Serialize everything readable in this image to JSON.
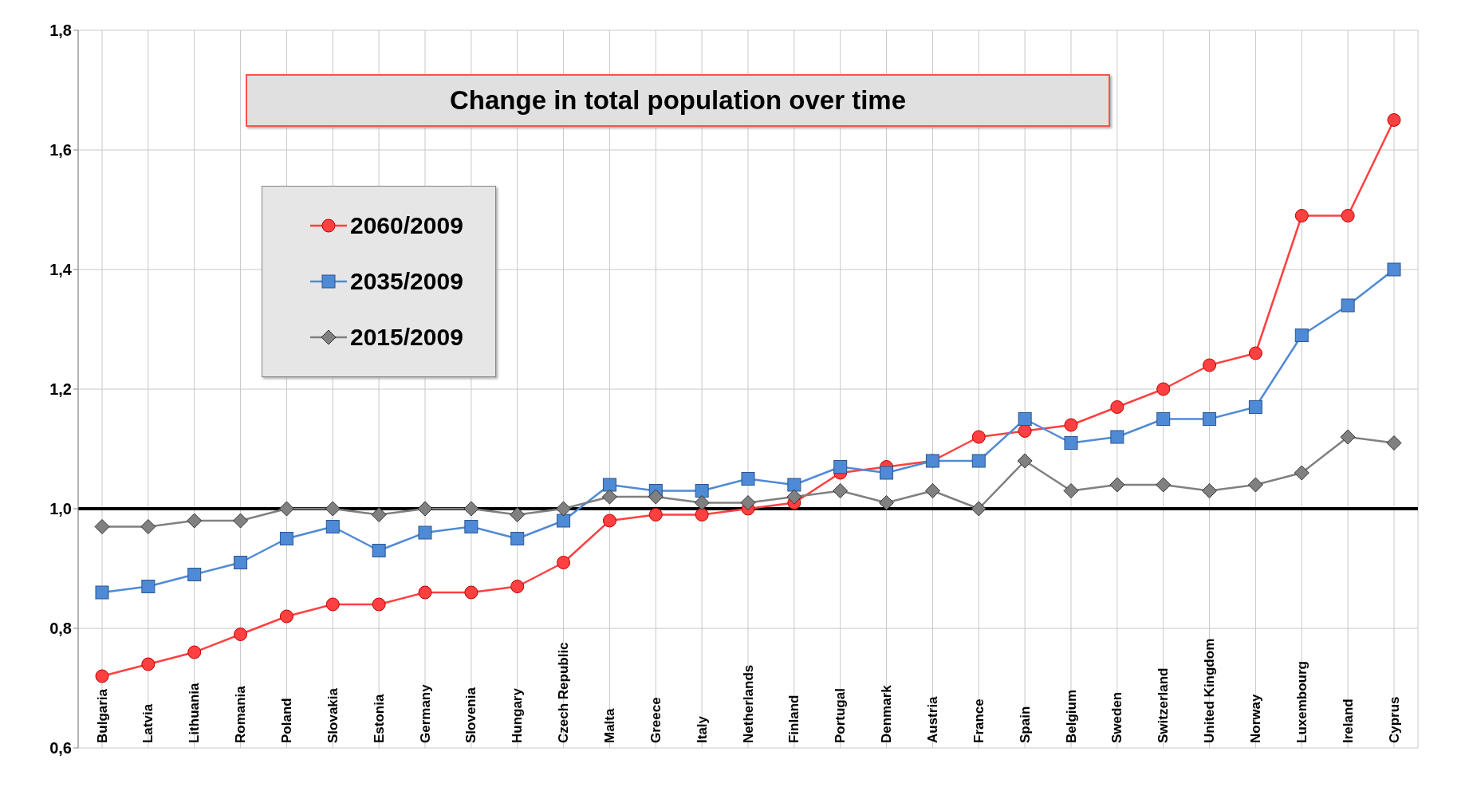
{
  "chart_data": {
    "type": "line",
    "title": "Change in total population over time",
    "categories": [
      "Bulgaria",
      "Latvia",
      "Lithuania",
      "Romania",
      "Poland",
      "Slovakia",
      "Estonia",
      "Germany",
      "Slovenia",
      "Hungary",
      "Czech Republic",
      "Malta",
      "Greece",
      "Italy",
      "Netherlands",
      "Finland",
      "Portugal",
      "Denmark",
      "Austria",
      "France",
      "Spain",
      "Belgium",
      "Sweden",
      "Switzerland",
      "United Kingdom",
      "Norway",
      "Luxembourg",
      "Ireland",
      "Cyprus"
    ],
    "series": [
      {
        "name": "2060/2009",
        "color": "#ff4040",
        "marker": "circle",
        "values": [
          0.72,
          0.74,
          0.76,
          0.79,
          0.82,
          0.84,
          0.84,
          0.86,
          0.86,
          0.87,
          0.91,
          0.98,
          0.99,
          0.99,
          1.0,
          1.01,
          1.06,
          1.07,
          1.08,
          1.12,
          1.13,
          1.14,
          1.17,
          1.2,
          1.24,
          1.26,
          1.49,
          1.49,
          1.65
        ]
      },
      {
        "name": "2035/2009",
        "color": "#4f8ad6",
        "marker": "square",
        "values": [
          0.86,
          0.87,
          0.89,
          0.91,
          0.95,
          0.97,
          0.93,
          0.96,
          0.97,
          0.95,
          0.98,
          1.04,
          1.03,
          1.03,
          1.05,
          1.04,
          1.07,
          1.06,
          1.08,
          1.08,
          1.15,
          1.11,
          1.12,
          1.15,
          1.15,
          1.17,
          1.29,
          1.34,
          1.4
        ]
      },
      {
        "name": "2015/2009",
        "color": "#808080",
        "marker": "diamond",
        "values": [
          0.97,
          0.97,
          0.98,
          0.98,
          1.0,
          1.0,
          0.99,
          1.0,
          1.0,
          0.99,
          1.0,
          1.02,
          1.02,
          1.01,
          1.01,
          1.02,
          1.03,
          1.01,
          1.03,
          1.0,
          1.08,
          1.03,
          1.04,
          1.04,
          1.03,
          1.04,
          1.06,
          1.12,
          1.11
        ]
      }
    ],
    "ylim": [
      0.6,
      1.8
    ],
    "yticks": [
      {
        "value": 0.6,
        "label": "0,6"
      },
      {
        "value": 0.8,
        "label": "0,8"
      },
      {
        "value": 1.0,
        "label": "1,0"
      },
      {
        "value": 1.2,
        "label": "1,2"
      },
      {
        "value": 1.4,
        "label": "1,4"
      },
      {
        "value": 1.6,
        "label": "1,6"
      },
      {
        "value": 1.8,
        "label": "1,8"
      }
    ],
    "ref_lines": [
      {
        "axis": "y",
        "value": 1.0,
        "color": "#000000"
      }
    ],
    "grid": true,
    "legend": "top left"
  }
}
